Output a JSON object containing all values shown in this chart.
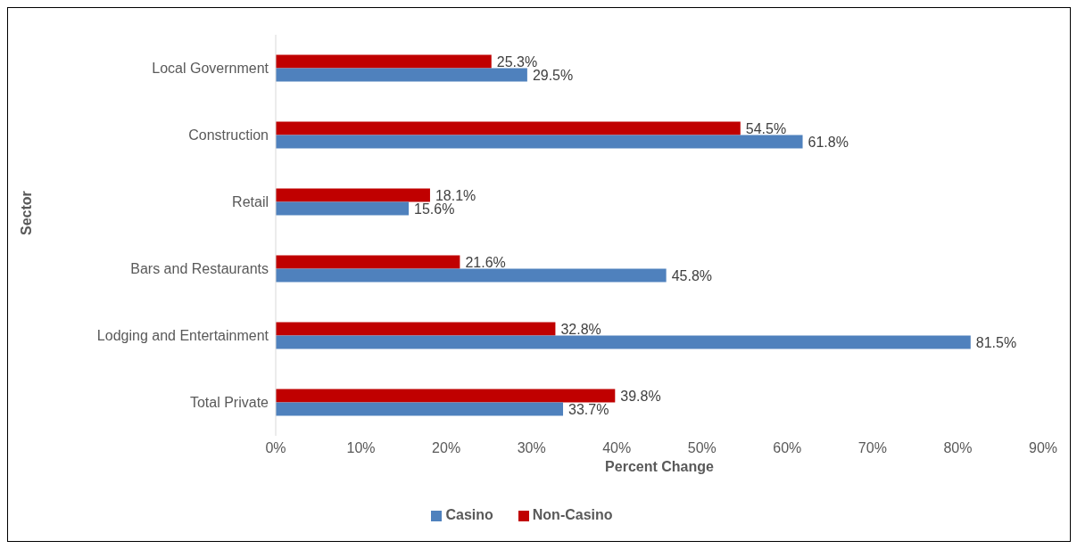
{
  "chart_data": {
    "type": "bar",
    "orientation": "horizontal",
    "xlabel": "Percent Change",
    "ylabel": "Sector",
    "categories": [
      "Local Government",
      "Construction",
      "Retail",
      "Bars and Restaurants",
      "Lodging and Entertainment",
      "Total Private"
    ],
    "series": [
      {
        "name": "Non-Casino",
        "color": "#c00000",
        "values": [
          25.3,
          54.5,
          18.1,
          21.6,
          32.8,
          39.8
        ],
        "value_labels": [
          "25.3%",
          "54.5%",
          "18.1%",
          "21.6%",
          "32.8%",
          "39.8%"
        ]
      },
      {
        "name": "Casino",
        "color": "#4f81bd",
        "values": [
          29.5,
          61.8,
          15.6,
          45.8,
          81.5,
          33.7
        ],
        "value_labels": [
          "29.5%",
          "61.8%",
          "15.6%",
          "45.8%",
          "81.5%",
          "33.7%"
        ]
      }
    ],
    "xlim": [
      0,
      90
    ],
    "xticks": [
      {
        "value": 0,
        "label": "0%"
      },
      {
        "value": 10,
        "label": "10%"
      },
      {
        "value": 20,
        "label": "20%"
      },
      {
        "value": 30,
        "label": "30%"
      },
      {
        "value": 40,
        "label": "40%"
      },
      {
        "value": 50,
        "label": "50%"
      },
      {
        "value": 60,
        "label": "60%"
      },
      {
        "value": 70,
        "label": "70%"
      },
      {
        "value": 80,
        "label": "80%"
      },
      {
        "value": 90,
        "label": "90%"
      }
    ],
    "grid": false,
    "legend": "bottom"
  }
}
